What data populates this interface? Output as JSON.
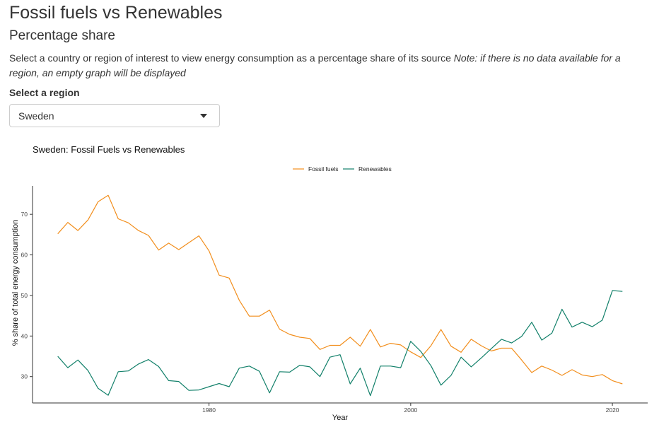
{
  "header": {
    "title": "Fossil fuels vs Renewables",
    "subtitle": "Percentage share"
  },
  "description": {
    "text": "Select a country or region of interest to view energy consumption as a percentage share of its source",
    "note": "Note: if there is no data available for a region, an empty graph will be displayed"
  },
  "region_select": {
    "label": "Select a region",
    "selected": "Sweden"
  },
  "chart_data": {
    "type": "line",
    "title": "Sweden: Fossil Fuels vs Renewables",
    "xlabel": "Year",
    "ylabel": "% share of total energy consumption",
    "xlim": [
      1962.5,
      2023.5
    ],
    "ylim": [
      23.5,
      77
    ],
    "xticks": [
      1980,
      2000,
      2020
    ],
    "yticks": [
      30,
      40,
      50,
      60,
      70
    ],
    "grid": false,
    "legend_position": "top-center",
    "x": [
      1965,
      1966,
      1967,
      1968,
      1969,
      1970,
      1971,
      1972,
      1973,
      1974,
      1975,
      1976,
      1977,
      1978,
      1979,
      1980,
      1981,
      1982,
      1983,
      1984,
      1985,
      1986,
      1987,
      1988,
      1989,
      1990,
      1991,
      1992,
      1993,
      1994,
      1995,
      1996,
      1997,
      1998,
      1999,
      2000,
      2001,
      2002,
      2003,
      2004,
      2005,
      2006,
      2007,
      2008,
      2009,
      2010,
      2011,
      2012,
      2013,
      2014,
      2015,
      2016,
      2017,
      2018,
      2019,
      2020,
      2021
    ],
    "series": [
      {
        "name": "Fossil fuels",
        "color": "#f28e1c",
        "values": [
          65.2,
          68.0,
          66.0,
          68.6,
          73.1,
          74.7,
          68.9,
          67.9,
          66.0,
          64.8,
          61.2,
          62.9,
          61.3,
          63.0,
          64.7,
          61.0,
          55.0,
          54.3,
          48.8,
          44.9,
          44.9,
          46.4,
          41.7,
          40.4,
          39.7,
          39.4,
          36.7,
          37.7,
          37.7,
          39.7,
          37.5,
          41.6,
          37.3,
          38.2,
          37.8,
          36.1,
          34.7,
          37.6,
          41.6,
          37.5,
          36.0,
          39.2,
          37.6,
          36.3,
          37.0,
          37.0,
          34.1,
          31.0,
          32.6,
          31.6,
          30.3,
          31.7,
          30.4,
          30.0,
          30.5,
          29.0,
          28.2
        ]
      },
      {
        "name": "Renewables",
        "color": "#12806a",
        "values": [
          35.0,
          32.2,
          34.1,
          31.5,
          27.1,
          25.4,
          31.2,
          31.4,
          33.1,
          34.2,
          32.5,
          29.0,
          28.8,
          26.6,
          26.7,
          27.5,
          28.3,
          27.5,
          32.1,
          32.6,
          31.3,
          26.0,
          31.2,
          31.1,
          32.8,
          32.4,
          30.0,
          34.8,
          35.4,
          28.2,
          32.1,
          25.3,
          32.6,
          32.6,
          32.2,
          38.7,
          36.2,
          32.7,
          27.9,
          30.3,
          34.8,
          32.4,
          34.6,
          36.9,
          39.2,
          38.3,
          39.9,
          43.4,
          39.0,
          40.7,
          46.6,
          42.2,
          43.4,
          42.3,
          43.9,
          51.2,
          51.0
        ]
      }
    ]
  }
}
